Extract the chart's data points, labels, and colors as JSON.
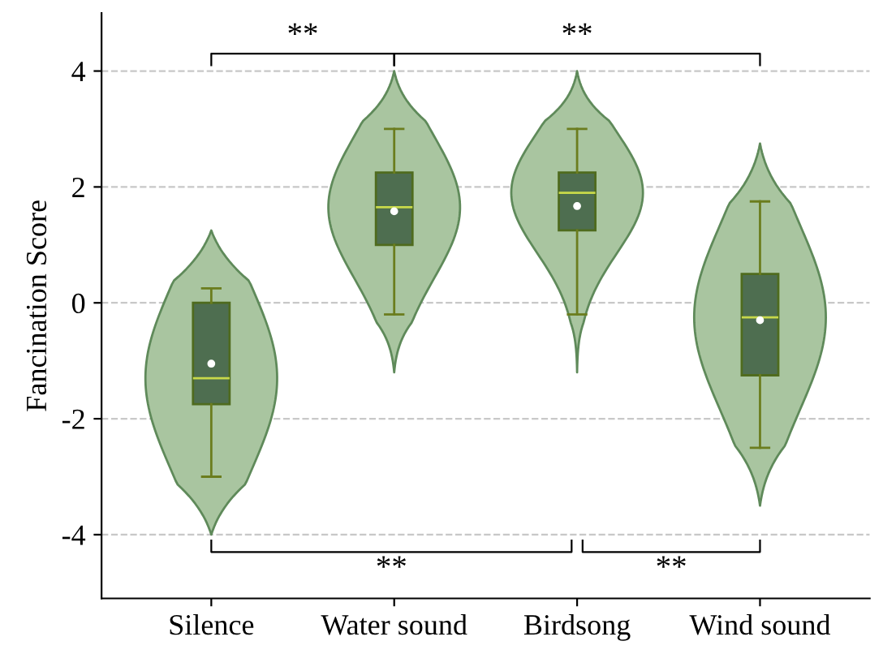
{
  "chart_data": {
    "type": "box",
    "ylabel": "Fancination Score",
    "categories": [
      "Silence",
      "Water sound",
      "Birdsong",
      "Wind sound"
    ],
    "boxes": [
      {
        "low": -3.0,
        "q1": -1.75,
        "median": -1.3,
        "q3": 0.0,
        "high": 0.25,
        "mean": -1.05
      },
      {
        "low": -0.2,
        "q1": 1.0,
        "median": 1.65,
        "q3": 2.25,
        "high": 3.0,
        "mean": 1.58
      },
      {
        "low": -0.2,
        "q1": 1.25,
        "median": 1.9,
        "q3": 2.25,
        "high": 3.0,
        "mean": 1.67
      },
      {
        "low": -2.5,
        "q1": -1.25,
        "median": -0.25,
        "q3": 0.5,
        "high": 1.75,
        "mean": -0.3
      }
    ],
    "color": "#4e6e50",
    "ylim": [
      -5.1,
      5.0
    ],
    "yticks": [
      -4,
      -2,
      0,
      2,
      4
    ],
    "grid": "y",
    "annotations": [
      "**",
      "**",
      "**",
      "**"
    ]
  }
}
